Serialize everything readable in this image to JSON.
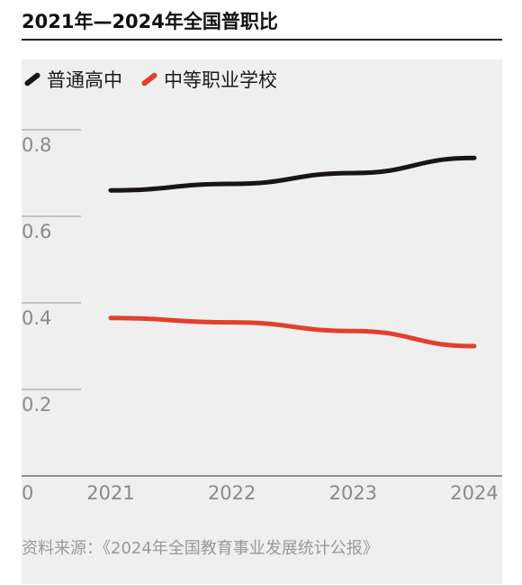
{
  "title": "2021年—2024年全国普职比",
  "chart_data": {
    "type": "line",
    "x": [
      "2021",
      "2022",
      "2023",
      "2024"
    ],
    "series": [
      {
        "name": "普通高中",
        "color": "#1a1414",
        "values": [
          0.66,
          0.675,
          0.7,
          0.735
        ]
      },
      {
        "name": "中等职业学校",
        "color": "#e0412c",
        "values": [
          0.365,
          0.355,
          0.335,
          0.3
        ]
      }
    ],
    "yticks": [
      "0",
      "0.2",
      "0.4",
      "0.6",
      "0.8"
    ],
    "ylim": [
      0,
      0.8
    ],
    "grid": true,
    "legend": "top-left"
  },
  "source": "资料来源：《2024年全国教育事业发展统计公报》"
}
